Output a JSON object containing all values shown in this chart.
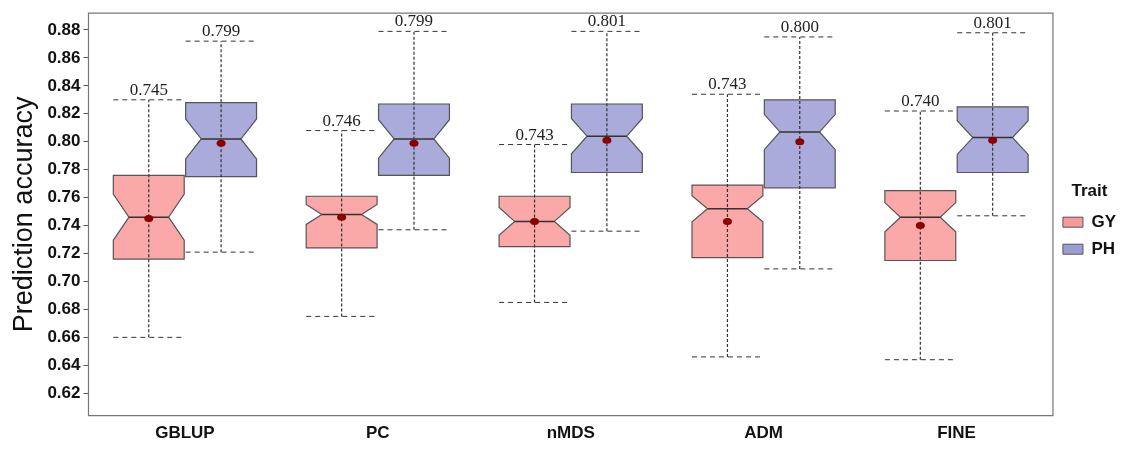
{
  "chart_data": {
    "type": "box",
    "ylabel": "Prediction accuracy",
    "legend_title": "Trait",
    "legend": "right",
    "grid": false,
    "categories": [
      "GBLUP",
      "PC",
      "nMDS",
      "ADM",
      "FINE"
    ],
    "ylim": [
      0.604,
      0.892
    ],
    "yticks": [
      {
        "value": 0.62,
        "label": "0.62"
      },
      {
        "value": 0.64,
        "label": "0.64"
      },
      {
        "value": 0.66,
        "label": "0.66"
      },
      {
        "value": 0.68,
        "label": "0.68"
      },
      {
        "value": 0.7,
        "label": "0.70"
      },
      {
        "value": 0.72,
        "label": "0.72"
      },
      {
        "value": 0.74,
        "label": "0.74"
      },
      {
        "value": 0.76,
        "label": "0.76"
      },
      {
        "value": 0.78,
        "label": "0.78"
      },
      {
        "value": 0.8,
        "label": "0.80"
      },
      {
        "value": 0.82,
        "label": "0.82"
      },
      {
        "value": 0.84,
        "label": "0.84"
      },
      {
        "value": 0.86,
        "label": "0.86"
      },
      {
        "value": 0.88,
        "label": "0.88"
      }
    ],
    "series": [
      {
        "name": "GY",
        "color": "#f99b9b",
        "value_labels": [
          "0.745",
          "0.746",
          "0.743",
          "0.743",
          "0.740"
        ],
        "boxes": [
          {
            "low": 0.66,
            "q1": 0.716,
            "median": 0.746,
            "q3": 0.776,
            "high": 0.83,
            "mean": 0.745
          },
          {
            "low": 0.675,
            "q1": 0.724,
            "median": 0.748,
            "q3": 0.761,
            "high": 0.808,
            "mean": 0.746
          },
          {
            "low": 0.685,
            "q1": 0.725,
            "median": 0.743,
            "q3": 0.761,
            "high": 0.798,
            "mean": 0.743
          },
          {
            "low": 0.646,
            "q1": 0.717,
            "median": 0.752,
            "q3": 0.769,
            "high": 0.834,
            "mean": 0.743
          },
          {
            "low": 0.644,
            "q1": 0.715,
            "median": 0.746,
            "q3": 0.765,
            "high": 0.822,
            "mean": 0.74
          }
        ]
      },
      {
        "name": "PH",
        "color": "#9d9dd6",
        "value_labels": [
          "0.799",
          "0.799",
          "0.801",
          "0.800",
          "0.801"
        ],
        "boxes": [
          {
            "low": 0.721,
            "q1": 0.775,
            "median": 0.802,
            "q3": 0.828,
            "high": 0.872,
            "mean": 0.799
          },
          {
            "low": 0.737,
            "q1": 0.776,
            "median": 0.802,
            "q3": 0.827,
            "high": 0.879,
            "mean": 0.799
          },
          {
            "low": 0.736,
            "q1": 0.778,
            "median": 0.804,
            "q3": 0.827,
            "high": 0.879,
            "mean": 0.801
          },
          {
            "low": 0.709,
            "q1": 0.767,
            "median": 0.807,
            "q3": 0.83,
            "high": 0.875,
            "mean": 0.8
          },
          {
            "low": 0.747,
            "q1": 0.778,
            "median": 0.803,
            "q3": 0.825,
            "high": 0.878,
            "mean": 0.801
          }
        ]
      }
    ]
  }
}
